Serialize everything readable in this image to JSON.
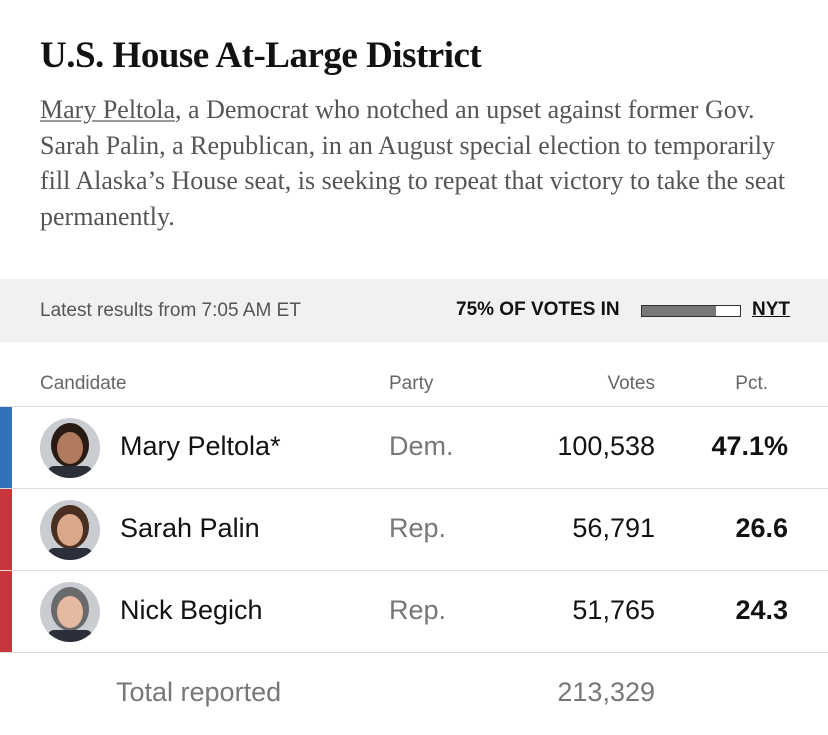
{
  "header": {
    "title": "U.S. House At-Large District",
    "description": {
      "link": "Mary Peltola",
      "text": ", a Democrat who notched an upset against former Gov. Sarah Palin, a Republican, in an August special election to temporarily fill Alaska’s House seat, is seeking to repeat that victory to take the seat permanently."
    }
  },
  "status": {
    "updated": "Latest results from 7:05 AM ET",
    "reporting": "75% OF VOTES IN",
    "reporting_pct": 75,
    "source": "NYT"
  },
  "table": {
    "columns": [
      "Candidate",
      "Party",
      "Votes",
      "Pct."
    ],
    "rows": [
      {
        "name": "Mary Peltola*",
        "party": "Dem.",
        "votes": "100,538",
        "pct": "47.1%",
        "color": "#3272b8"
      },
      {
        "name": "Sarah Palin",
        "party": "Rep.",
        "votes": "56,791",
        "pct": "26.6",
        "color": "#c7363b"
      },
      {
        "name": "Nick Begich",
        "party": "Rep.",
        "votes": "51,765",
        "pct": "24.3",
        "color": "#c7363b"
      }
    ],
    "total": {
      "label": "Total reported",
      "votes": "213,329"
    }
  }
}
